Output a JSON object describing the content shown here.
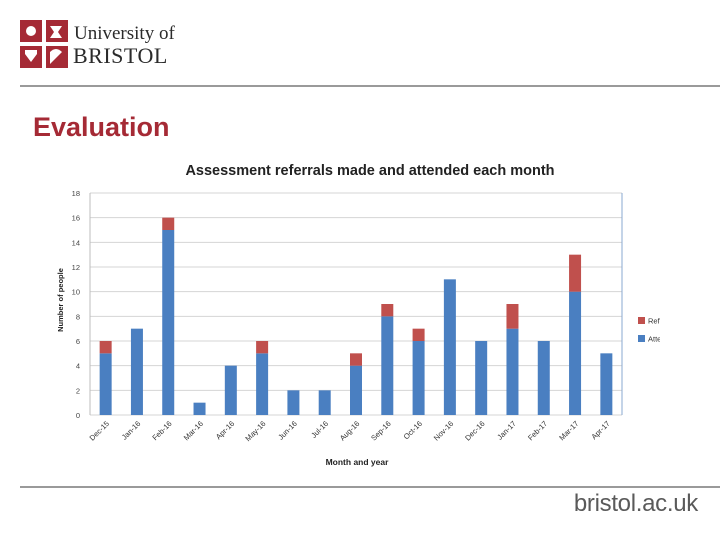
{
  "header": {
    "logo_line1": "University of",
    "logo_line2": "BRISTOL"
  },
  "page_title": "Evaluation",
  "footer": {
    "url": "bristol.ac.uk"
  },
  "colors": {
    "brand_red": "#a52a35",
    "attended": "#4a7fc1",
    "referrals_extra": "#c0504d"
  },
  "chart_data": {
    "type": "bar",
    "stacked": true,
    "title": "Assessment referrals made and attended each month",
    "xlabel": "Month and year",
    "ylabel": "Number of people",
    "ylim": [
      0,
      18
    ],
    "yticks": [
      0,
      2,
      4,
      6,
      8,
      10,
      12,
      14,
      16,
      18
    ],
    "grid": true,
    "legend_position": "right",
    "categories": [
      "Dec-15",
      "Jan-16",
      "Feb-16",
      "Mar-16",
      "Apr-16",
      "May-16",
      "Jun-16",
      "Jul-16",
      "Aug-16",
      "Sep-16",
      "Oct-16",
      "Nov-16",
      "Dec-16",
      "Jan-17",
      "Feb-17",
      "Mar-17",
      "Apr-17"
    ],
    "series": [
      {
        "name": "Attended",
        "color": "#4a7fc1",
        "values": [
          5,
          7,
          15,
          1,
          4,
          5,
          2,
          2,
          4,
          8,
          6,
          11,
          6,
          7,
          6,
          10,
          5
        ]
      },
      {
        "name": "Referrals",
        "color": "#c0504d",
        "values": [
          1,
          0,
          1,
          0,
          0,
          1,
          0,
          0,
          1,
          1,
          1,
          0,
          0,
          2,
          0,
          3,
          0
        ]
      }
    ],
    "legend_order": [
      "Referrals",
      "Attended"
    ]
  }
}
